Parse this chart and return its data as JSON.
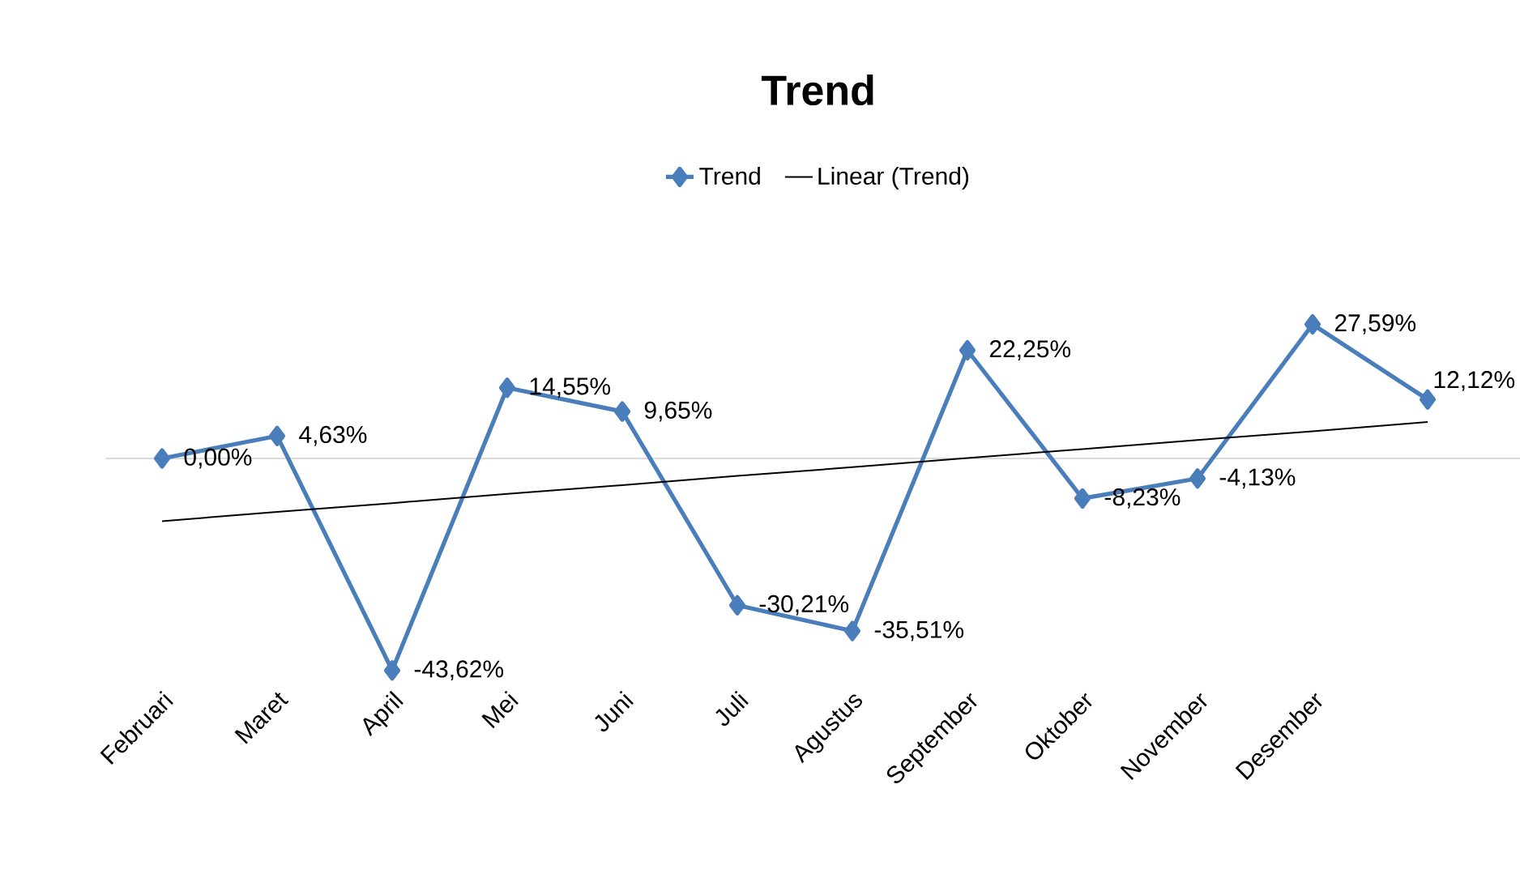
{
  "chart_data": {
    "type": "line",
    "title": "Trend",
    "categories": [
      "Februari",
      "Maret",
      "April",
      "Mei",
      "Juni",
      "Juli",
      "Agustus",
      "September",
      "Oktober",
      "November",
      "Desember",
      null
    ],
    "series": [
      {
        "name": "Trend",
        "color": "#4a7ebb",
        "values": [
          0.0,
          4.63,
          -43.62,
          14.55,
          9.65,
          -30.21,
          -35.51,
          22.25,
          -8.23,
          -4.13,
          27.59,
          12.12
        ],
        "value_labels": [
          "0,00%",
          "4,63%",
          "-43,62%",
          "14,55%",
          "9,65%",
          "-30,21%",
          "-35,51%",
          "22,25%",
          "-8,23%",
          "-4,13%",
          "27,59%",
          "12,12%"
        ]
      },
      {
        "name": "Linear (Trend)",
        "type": "line",
        "color": "#000000",
        "marker": "none",
        "values": [
          -12.9,
          -11.0,
          -9.2,
          -7.3,
          -5.5,
          -3.6,
          -1.8,
          0.1,
          1.9,
          3.8,
          5.6,
          7.5
        ]
      }
    ],
    "legend": "top",
    "marker": "diamond",
    "grid": false
  }
}
